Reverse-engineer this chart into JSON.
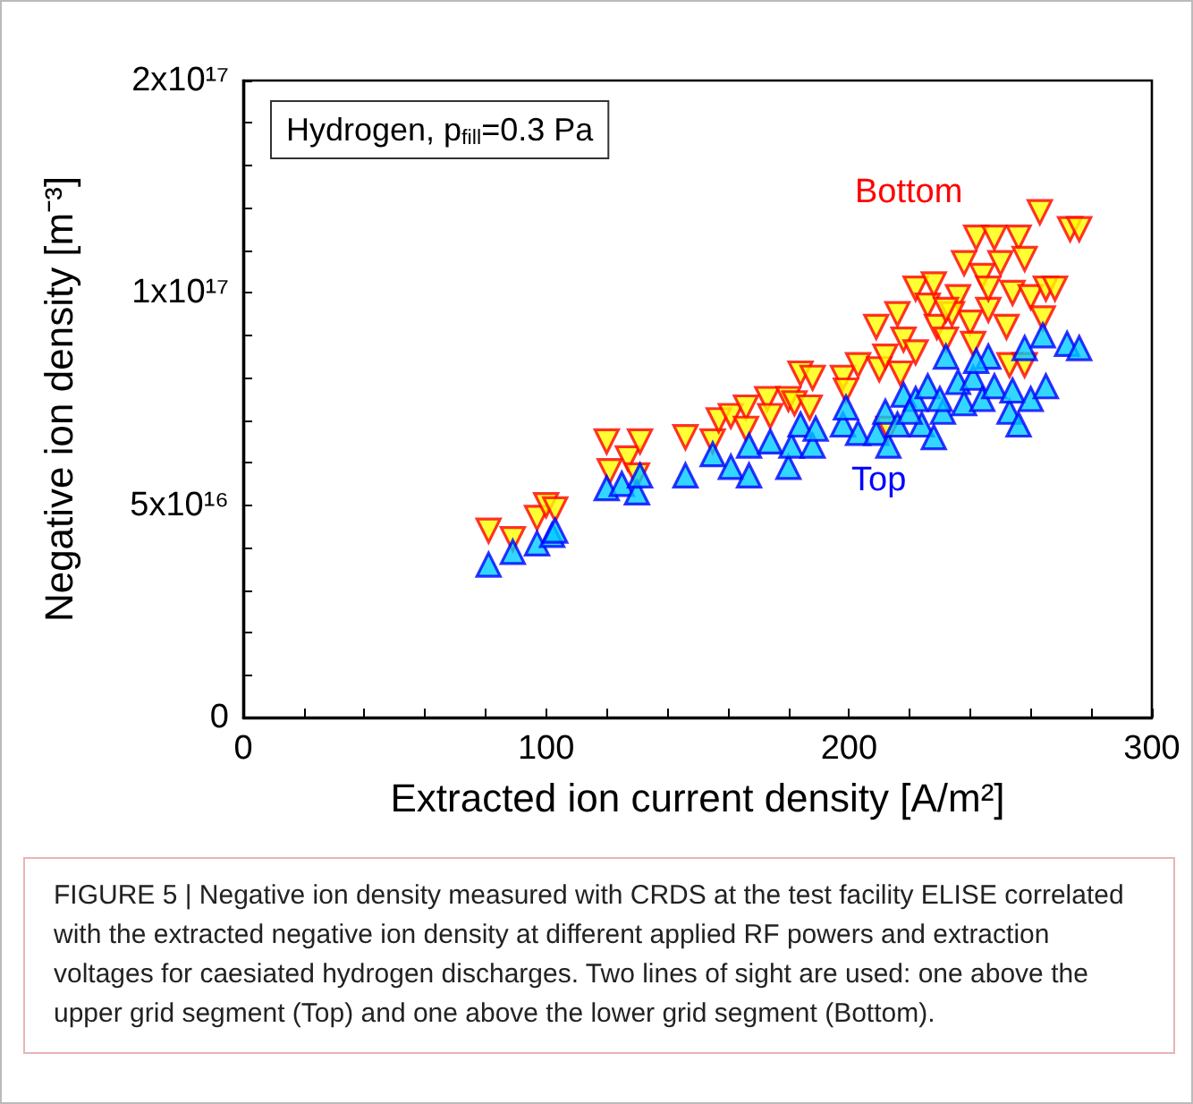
{
  "chart_data": {
    "type": "scatter",
    "xlabel": "Extracted ion current density [A/m²]",
    "ylabel": "Negative ion density [m⁻³]",
    "xlim": [
      0,
      300
    ],
    "xticks": [
      0,
      100,
      200,
      300
    ],
    "ylim": [
      0,
      1.5e+17
    ],
    "yticks": [
      0,
      {
        "value": 5e+16,
        "label": "5x10¹⁶"
      },
      {
        "value": 1e+17,
        "label": "1x10¹⁷"
      },
      {
        "value": 1.5e+17,
        "label": "2x10¹⁷"
      }
    ],
    "grid": false,
    "legend": false,
    "marker": "triangle",
    "annotations": [
      "Hydrogen, p$_{fill}$=0.3 Pa",
      "FIGURE 5 | Negative ion density measured with CRDS at the test facility ELISE correlated with the extracted negative ion density at different applied RF powers and extraction voltages for caesiated hydrogen discharges. Two lines of sight are used: one above the upper grid segment (Top) and one above the lower grid segment (Bottom)."
    ],
    "series": [
      {
        "name": "Bottom",
        "color": "#ff0000",
        "x": [
          81,
          89,
          97,
          100,
          103,
          120,
          121,
          127,
          131,
          130,
          146,
          155,
          157,
          161,
          166,
          166,
          173,
          174,
          180,
          182,
          184,
          188,
          187,
          198,
          199,
          203,
          210,
          209,
          212,
          213,
          216,
          217,
          218,
          222,
          222,
          226,
          228,
          229,
          232,
          236,
          238,
          240,
          242,
          244,
          246,
          248,
          250,
          252,
          254,
          256,
          258,
          260,
          264,
          265,
          268,
          253,
          258,
          263,
          273,
          276,
          241,
          234,
          232,
          246
        ],
        "values": [
          4.4e+16,
          4.2e+16,
          4.7e+16,
          5e+16,
          4.9e+16,
          6.5e+16,
          5.8e+16,
          6.1e+16,
          6.5e+16,
          5.7e+16,
          6.6e+16,
          6.5e+16,
          7e+16,
          7.1e+16,
          7.3e+16,
          6.8e+16,
          7.5e+16,
          7.1e+16,
          7.5e+16,
          7.4e+16,
          8.1e+16,
          8e+16,
          7.3e+16,
          8e+16,
          7.7e+16,
          8.3e+16,
          8.2e+16,
          9.2e+16,
          8.5e+16,
          6.8e+16,
          9.5e+16,
          8.1e+16,
          8.9e+16,
          1.01e+17,
          8.6e+16,
          9.7e+16,
          1.02e+17,
          9.2e+16,
          8.9e+16,
          9.9e+16,
          1.07e+17,
          9.3e+16,
          1.13e+17,
          1.04e+17,
          9.6e+16,
          1.13e+17,
          1.07e+17,
          9.2e+16,
          1e+17,
          1.13e+17,
          1.08e+17,
          9.9e+16,
          9.4e+16,
          1.01e+17,
          1.01e+17,
          8.3e+16,
          8.3e+16,
          1.19e+17,
          1.15e+17,
          1.15e+17,
          8.8e+16,
          9.5e+16,
          9.6e+16,
          1.01e+17
        ]
      },
      {
        "name": "Top",
        "color": "#0000ff",
        "x": [
          81,
          89,
          97,
          102,
          103,
          120,
          125,
          130,
          131,
          146,
          155,
          161,
          167,
          167,
          174,
          180,
          181,
          184,
          188,
          189,
          198,
          199,
          203,
          209,
          212,
          213,
          216,
          218,
          222,
          224,
          226,
          228,
          231,
          232,
          236,
          238,
          241,
          244,
          246,
          248,
          253,
          256,
          254,
          258,
          260,
          264,
          265,
          272,
          276,
          242,
          230,
          220
        ],
        "values": [
          3.6e+16,
          3.9e+16,
          4.1e+16,
          4.3e+16,
          4.4e+16,
          5.4e+16,
          5.5e+16,
          5.3e+16,
          5.7e+16,
          5.7e+16,
          6.2e+16,
          5.9e+16,
          5.7e+16,
          6.4e+16,
          6.5e+16,
          5.9e+16,
          6.4e+16,
          6.9e+16,
          6.4e+16,
          6.8e+16,
          6.9e+16,
          7.3e+16,
          6.7e+16,
          6.7e+16,
          7.2e+16,
          6.4e+16,
          6.9e+16,
          7.6e+16,
          7.5e+16,
          6.9e+16,
          7.8e+16,
          6.6e+16,
          7.2e+16,
          8.5e+16,
          7.9e+16,
          7.4e+16,
          8e+16,
          7.5e+16,
          8.5e+16,
          7.8e+16,
          7.2e+16,
          6.9e+16,
          7.7e+16,
          8.7e+16,
          7.5e+16,
          9e+16,
          7.8e+16,
          8.8e+16,
          8.7e+16,
          8.4e+16,
          7.5e+16,
          7.2e+16
        ]
      }
    ]
  }
}
